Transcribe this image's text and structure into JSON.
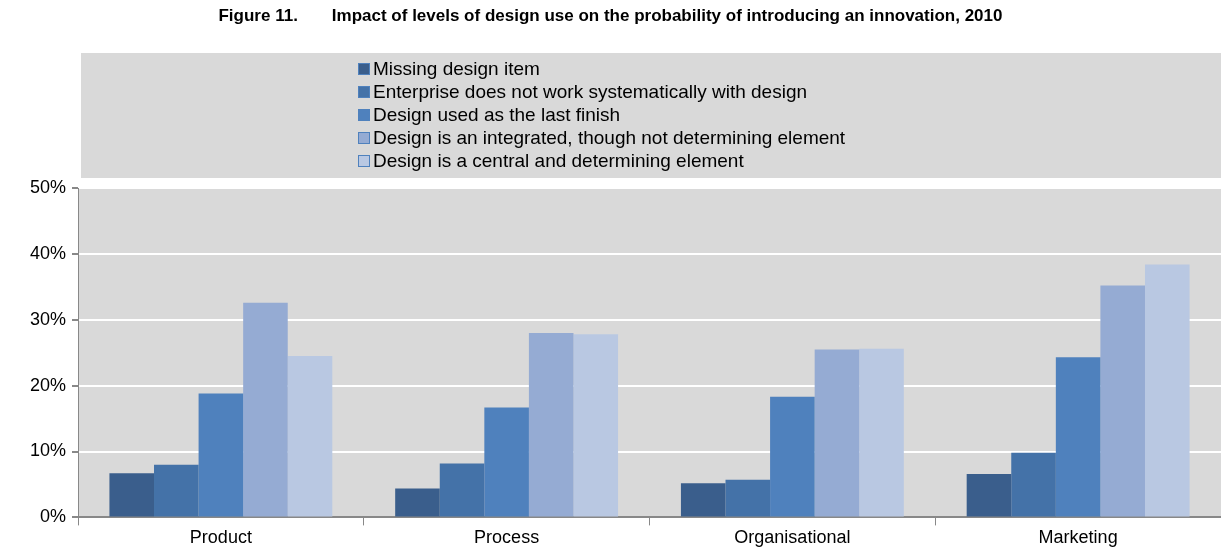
{
  "chart_data": {
    "type": "bar",
    "title": "Figure 11.  Impact of levels of design use on the probability of introducing an innovation, 2010",
    "categories": [
      "Product",
      "Process",
      "Organisational",
      "Marketing"
    ],
    "series": [
      {
        "name": "Missing design item",
        "color": "#3a5e8c",
        "values": [
          6.7,
          4.4,
          5.2,
          6.6
        ]
      },
      {
        "name": "Enterprise does not work systematically with design",
        "color": "#4472a8",
        "values": [
          8.0,
          8.2,
          5.7,
          9.8
        ]
      },
      {
        "name": "Design used as the last finish",
        "color": "#4f81bd",
        "values": [
          18.8,
          16.7,
          18.3,
          24.3
        ]
      },
      {
        "name": "Design is an integrated, though not determining element",
        "color": "#95abd3",
        "values": [
          32.6,
          28.0,
          25.5,
          35.2
        ]
      },
      {
        "name": "Design is a central and determining element",
        "color": "#b9c8e2",
        "values": [
          24.5,
          27.8,
          25.6,
          38.4
        ]
      }
    ],
    "ylim": [
      0,
      50
    ],
    "yticks": [
      {
        "value": 0,
        "label": "0%"
      },
      {
        "value": 10,
        "label": "10%"
      },
      {
        "value": 20,
        "label": "20%"
      },
      {
        "value": 30,
        "label": "30%"
      },
      {
        "value": 40,
        "label": "40%"
      },
      {
        "value": 50,
        "label": "50%"
      }
    ],
    "grid": "y",
    "legend": "top"
  }
}
